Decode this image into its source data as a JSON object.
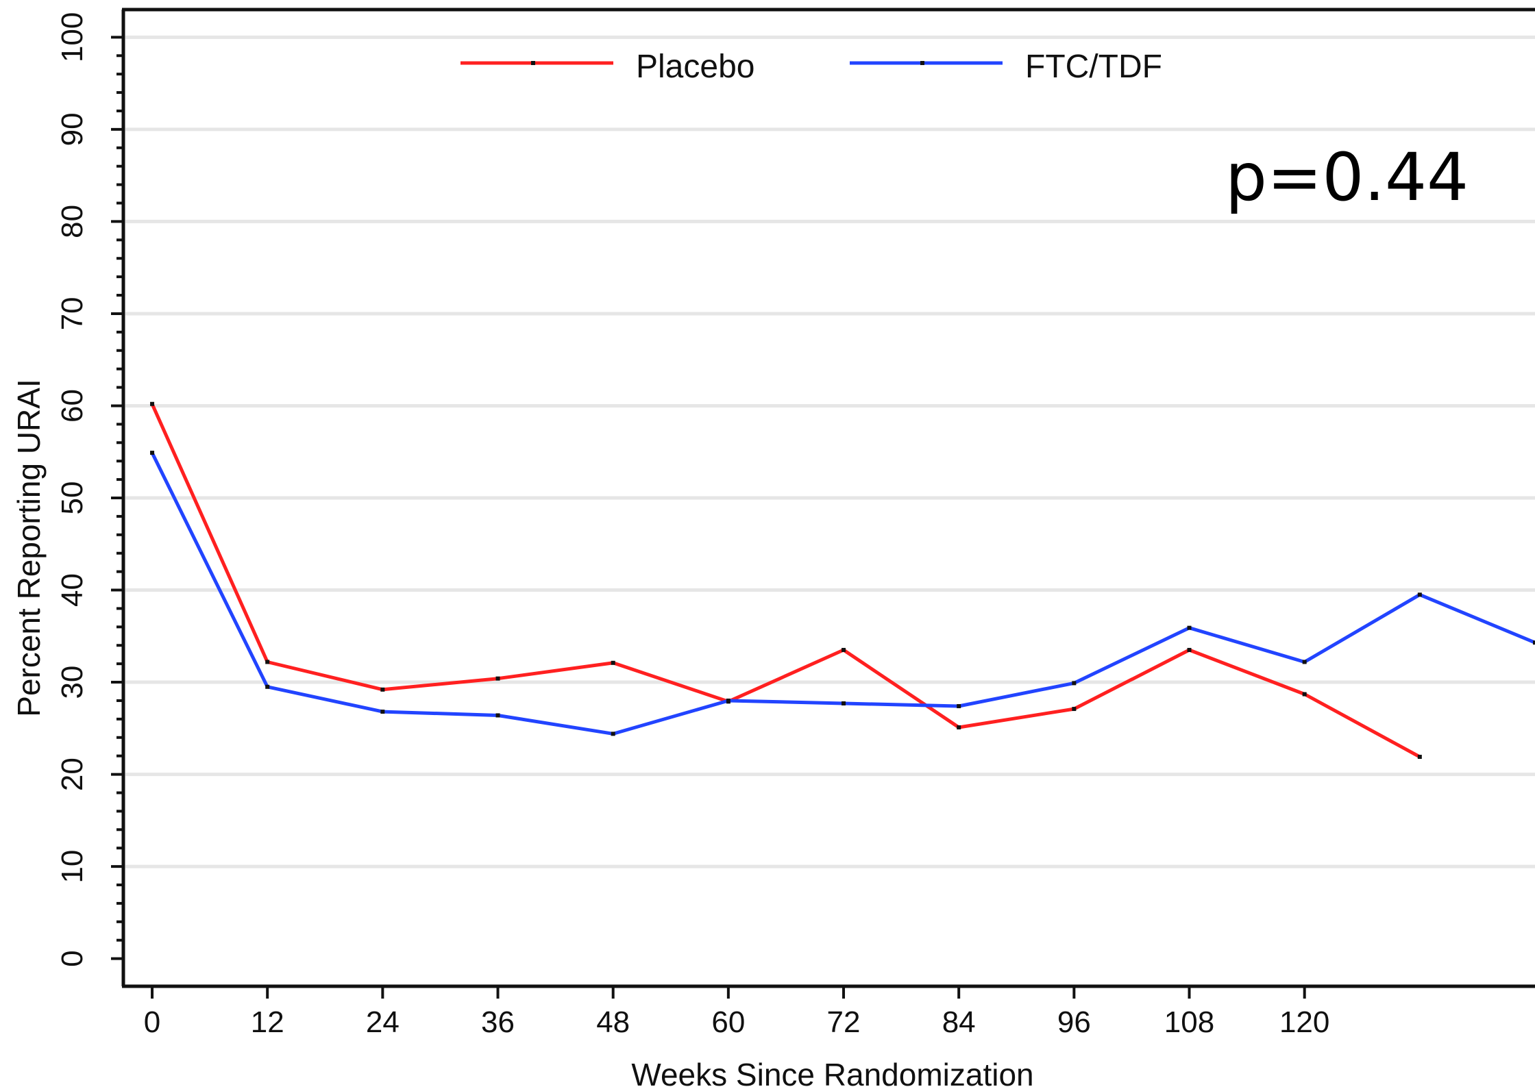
{
  "chart_data": {
    "type": "line",
    "xlabel": "Weeks Since Randomization",
    "ylabel": "Percent Reporting URAI",
    "xlim": [
      -3,
      144
    ],
    "ylim": [
      -3,
      103
    ],
    "x_ticks": [
      0,
      12,
      24,
      36,
      48,
      60,
      72,
      84,
      96,
      108,
      120
    ],
    "y_ticks": [
      0,
      10,
      20,
      30,
      40,
      50,
      60,
      70,
      80,
      90,
      100
    ],
    "grid": true,
    "legend_position": "top",
    "annotation": "p=0.44",
    "series": [
      {
        "name": "Placebo",
        "color": "#ff2020",
        "x": [
          0,
          12,
          24,
          36,
          48,
          60,
          72,
          84,
          96,
          108,
          120,
          132
        ],
        "y": [
          60.2,
          32.2,
          29.2,
          30.4,
          32.1,
          27.9,
          33.5,
          25.1,
          27.1,
          33.5,
          28.7,
          21.9
        ]
      },
      {
        "name": "FTC/TDF",
        "color": "#2244ff",
        "x": [
          0,
          12,
          24,
          36,
          48,
          60,
          72,
          84,
          96,
          108,
          120,
          132,
          144
        ],
        "y": [
          54.9,
          29.5,
          26.8,
          26.4,
          24.4,
          28.0,
          27.7,
          27.4,
          29.9,
          35.9,
          32.2,
          39.5,
          34.3
        ]
      }
    ]
  }
}
